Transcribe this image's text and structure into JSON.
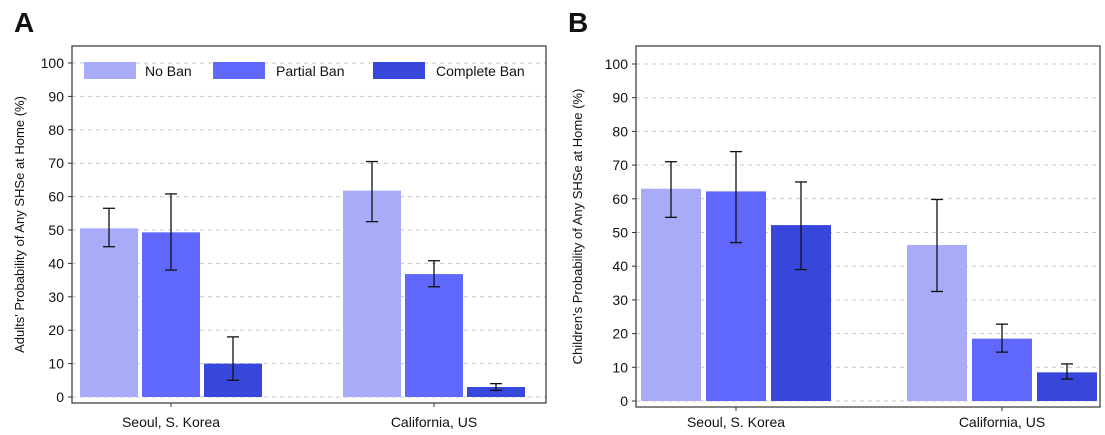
{
  "colors": {
    "no_ban": "#a8acf8",
    "partial_ban": "#5f68fb",
    "complete_ban": "#3747dc"
  },
  "legend": [
    "No Ban",
    "Partial Ban",
    "Complete Ban"
  ],
  "chart_data": [
    {
      "panel": "A",
      "type": "bar",
      "ylabel": "Adults' Probability of Any SHSe at Home (%)",
      "ylim": [
        0,
        100
      ],
      "yticks": [
        0,
        10,
        20,
        30,
        40,
        50,
        60,
        70,
        80,
        90,
        100
      ],
      "grid": true,
      "legend_position": "top",
      "categories": [
        "Seoul, S. Korea",
        "California, US"
      ],
      "series": [
        {
          "name": "No Ban",
          "values": [
            50.5,
            61.8
          ],
          "err_low": [
            45,
            52.5
          ],
          "err_high": [
            56.5,
            70.5
          ]
        },
        {
          "name": "Partial Ban",
          "values": [
            49.3,
            36.8
          ],
          "err_low": [
            38,
            33
          ],
          "err_high": [
            60.8,
            40.8
          ]
        },
        {
          "name": "Complete Ban",
          "values": [
            10,
            3
          ],
          "err_low": [
            5,
            2
          ],
          "err_high": [
            18,
            4
          ]
        }
      ]
    },
    {
      "panel": "B",
      "type": "bar",
      "ylabel": "Children's Probability of Any SHSe at Home (%)",
      "ylim": [
        0,
        100
      ],
      "yticks": [
        0,
        10,
        20,
        30,
        40,
        50,
        60,
        70,
        80,
        90,
        100
      ],
      "grid": true,
      "legend_position": "none",
      "categories": [
        "Seoul, S. Korea",
        "California, US"
      ],
      "series": [
        {
          "name": "No Ban",
          "values": [
            63,
            46.3
          ],
          "err_low": [
            54.5,
            32.5
          ],
          "err_high": [
            71,
            59.8
          ]
        },
        {
          "name": "Partial Ban",
          "values": [
            62.2,
            18.5
          ],
          "err_low": [
            47,
            14.5
          ],
          "err_high": [
            74,
            22.8
          ]
        },
        {
          "name": "Complete Ban",
          "values": [
            52.2,
            8.5
          ],
          "err_low": [
            39,
            6.5
          ],
          "err_high": [
            65,
            11
          ]
        }
      ]
    }
  ]
}
